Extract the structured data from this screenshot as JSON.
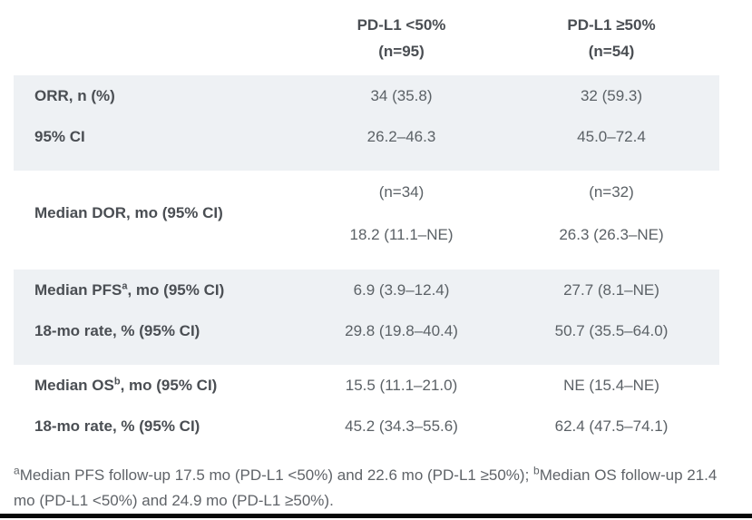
{
  "colors": {
    "band_shaded": "#eef1f4",
    "label_text": "#4a4e53",
    "value_text": "#5b6166",
    "footnote_text": "#5f6368",
    "bottom_bar": "#070707",
    "background": "#ffffff"
  },
  "header": {
    "col1": {
      "line1": "PD-L1 <50%",
      "line2": "(n=95)"
    },
    "col2": {
      "line1": "PD-L1 ≥50%",
      "line2": "(n=54)"
    }
  },
  "orr": {
    "row1": {
      "label": "ORR, n (%)",
      "v1": "34 (35.8)",
      "v2": "32 (59.3)"
    },
    "row2": {
      "label": "95% CI",
      "v1": "26.2–46.3",
      "v2": "45.0–72.4"
    }
  },
  "dor": {
    "label": "Median DOR, mo (95% CI)",
    "n1": "(n=34)",
    "n2": "(n=32)",
    "v1": "18.2 (11.1–NE)",
    "v2": "26.3 (26.3–NE)"
  },
  "pfs": {
    "row1": {
      "label_pre": "Median PFS",
      "label_sup": "a",
      "label_post": ", mo (95% CI)",
      "v1": "6.9 (3.9–12.4)",
      "v2": "27.7 (8.1–NE)"
    },
    "row2": {
      "label": "18-mo rate, % (95% CI)",
      "v1": "29.8 (19.8–40.4)",
      "v2": "50.7 (35.5–64.0)"
    }
  },
  "os": {
    "row1": {
      "label_pre": "Median OS",
      "label_sup": "b",
      "label_post": ", mo (95% CI)",
      "v1": "15.5 (11.1–21.0)",
      "v2": "NE (15.4–NE)"
    },
    "row2": {
      "label": "18-mo rate, % (95% CI)",
      "v1": "45.2 (34.3–55.6)",
      "v2": "62.4 (47.5–74.1)"
    }
  },
  "footnote": {
    "sup_a": "a",
    "part_a": "Median PFS follow-up 17.5 mo (PD-L1 <50%) and 22.6 mo (PD-L1 ≥50%); ",
    "sup_b": "b",
    "part_b": "Median OS follow-up 21.4 mo (PD-L1 <50%) and 24.9 mo (PD-L1 ≥50%)."
  },
  "chart_data": {
    "type": "table",
    "title": "",
    "columns": [
      "",
      "PD-L1 <50% (n=95)",
      "PD-L1 ≥50% (n=54)"
    ],
    "rows": [
      [
        "ORR, n (%)",
        "34 (35.8)",
        "32 (59.3)"
      ],
      [
        "95% CI",
        "26.2–46.3",
        "45.0–72.4"
      ],
      [
        "Median DOR, mo (95% CI)",
        "(n=34); 18.2 (11.1–NE)",
        "(n=32); 26.3 (26.3–NE)"
      ],
      [
        "Median PFS^a, mo (95% CI)",
        "6.9 (3.9–12.4)",
        "27.7 (8.1–NE)"
      ],
      [
        "18-mo rate, % (95% CI)",
        "29.8 (19.8–40.4)",
        "50.7 (35.5–64.0)"
      ],
      [
        "Median OS^b, mo (95% CI)",
        "15.5 (11.1–21.0)",
        "NE (15.4–NE)"
      ],
      [
        "18-mo rate, % (95% CI)",
        "45.2 (34.3–55.6)",
        "62.4 (47.5–74.1)"
      ]
    ],
    "footnote": "aMedian PFS follow-up 17.5 mo (PD-L1 <50%) and 22.6 mo (PD-L1 ≥50%); bMedian OS follow-up 21.4 mo (PD-L1 <50%) and 24.9 mo (PD-L1 ≥50%).",
    "layout_hints": {
      "shaded_row_groups": [
        "ORR/95% CI",
        "PFS rows"
      ],
      "grid": "off"
    }
  }
}
